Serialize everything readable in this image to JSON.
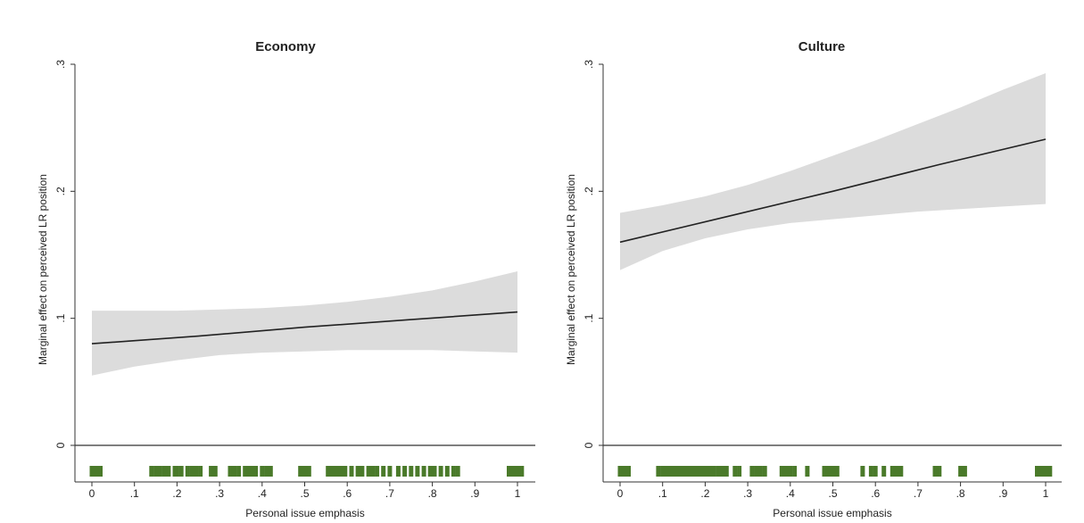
{
  "chart_data": [
    {
      "type": "line",
      "title": "Economy",
      "xlabel": "Personal issue emphasis",
      "ylabel": "Marginal effect on perceived LR position",
      "xlim": [
        -0.02,
        1.02
      ],
      "ylim": [
        -0.015,
        0.305
      ],
      "x_ticks": [
        0,
        0.1,
        0.2,
        0.3,
        0.4,
        0.5,
        0.6,
        0.7,
        0.8,
        0.9,
        1
      ],
      "x_tick_labels": [
        "0",
        ".1",
        ".2",
        ".3",
        ".4",
        ".5",
        ".6",
        ".7",
        ".8",
        ".9",
        "1"
      ],
      "y_ticks": [
        0,
        0.1,
        0.2,
        0.3
      ],
      "y_tick_labels": [
        "0",
        ".1",
        ".2",
        ".3"
      ],
      "reference_line_y": 0,
      "grid": false,
      "series": [
        {
          "type": "line",
          "x": [
            0,
            0.25,
            0.5,
            0.75,
            1
          ],
          "y": [
            0.08,
            0.086,
            0.093,
            0.099,
            0.105
          ],
          "color": "#222222"
        },
        {
          "type": "band",
          "x": [
            0,
            0.1,
            0.2,
            0.3,
            0.4,
            0.5,
            0.6,
            0.7,
            0.8,
            0.9,
            1
          ],
          "lower": [
            0.055,
            0.062,
            0.067,
            0.071,
            0.073,
            0.074,
            0.075,
            0.075,
            0.075,
            0.074,
            0.073
          ],
          "upper": [
            0.106,
            0.106,
            0.106,
            0.107,
            0.108,
            0.11,
            0.113,
            0.117,
            0.122,
            0.129,
            0.137
          ],
          "color": "#dcdcdc"
        }
      ],
      "rug": [
        0,
        0.005,
        0.01,
        0.015,
        0.02,
        0.14,
        0.15,
        0.16,
        0.17,
        0.18,
        0.195,
        0.2,
        0.21,
        0.225,
        0.235,
        0.245,
        0.255,
        0.28,
        0.29,
        0.325,
        0.335,
        0.345,
        0.36,
        0.37,
        0.38,
        0.385,
        0.4,
        0.41,
        0.42,
        0.49,
        0.5,
        0.51,
        0.555,
        0.565,
        0.575,
        0.585,
        0.595,
        0.61,
        0.625,
        0.635,
        0.65,
        0.66,
        0.67,
        0.685,
        0.7,
        0.72,
        0.735,
        0.75,
        0.765,
        0.78,
        0.795,
        0.805,
        0.82,
        0.835,
        0.85,
        0.86,
        0.98,
        0.99,
        1,
        1.01
      ],
      "rug_color": "#4a7a2a"
    },
    {
      "type": "line",
      "title": "Culture",
      "xlabel": "Personal issue emphasis",
      "ylabel": "Marginal effect on perceived LR position",
      "xlim": [
        -0.02,
        1.02
      ],
      "ylim": [
        -0.015,
        0.305
      ],
      "x_ticks": [
        0,
        0.1,
        0.2,
        0.3,
        0.4,
        0.5,
        0.6,
        0.7,
        0.8,
        0.9,
        1
      ],
      "x_tick_labels": [
        "0",
        ".1",
        ".2",
        ".3",
        ".4",
        ".5",
        ".6",
        ".7",
        ".8",
        ".9",
        "1"
      ],
      "y_ticks": [
        0,
        0.1,
        0.2,
        0.3
      ],
      "y_tick_labels": [
        "0",
        ".1",
        ".2",
        ".3"
      ],
      "reference_line_y": 0,
      "grid": false,
      "series": [
        {
          "type": "line",
          "x": [
            0,
            0.25,
            0.5,
            0.75,
            1
          ],
          "y": [
            0.16,
            0.18,
            0.2,
            0.221,
            0.241
          ],
          "color": "#222222"
        },
        {
          "type": "band",
          "x": [
            0,
            0.1,
            0.2,
            0.3,
            0.4,
            0.5,
            0.6,
            0.7,
            0.8,
            0.9,
            1
          ],
          "lower": [
            0.138,
            0.153,
            0.163,
            0.17,
            0.175,
            0.178,
            0.181,
            0.184,
            0.186,
            0.188,
            0.19
          ],
          "upper": [
            0.183,
            0.189,
            0.196,
            0.205,
            0.216,
            0.228,
            0.24,
            0.253,
            0.266,
            0.28,
            0.293
          ],
          "color": "#dcdcdc"
        }
      ],
      "rug": [
        0,
        0.005,
        0.01,
        0.015,
        0.02,
        0.09,
        0.1,
        0.105,
        0.11,
        0.115,
        0.12,
        0.125,
        0.13,
        0.135,
        0.14,
        0.145,
        0.15,
        0.155,
        0.16,
        0.165,
        0.17,
        0.175,
        0.18,
        0.185,
        0.19,
        0.195,
        0.2,
        0.205,
        0.21,
        0.22,
        0.23,
        0.24,
        0.25,
        0.27,
        0.28,
        0.31,
        0.32,
        0.33,
        0.34,
        0.38,
        0.39,
        0.4,
        0.41,
        0.44,
        0.48,
        0.49,
        0.5,
        0.51,
        0.57,
        0.59,
        0.6,
        0.62,
        0.64,
        0.65,
        0.66,
        0.74,
        0.75,
        0.8,
        0.81,
        0.98,
        0.99,
        1,
        1.01
      ],
      "rug_color": "#4a7a2a"
    }
  ]
}
